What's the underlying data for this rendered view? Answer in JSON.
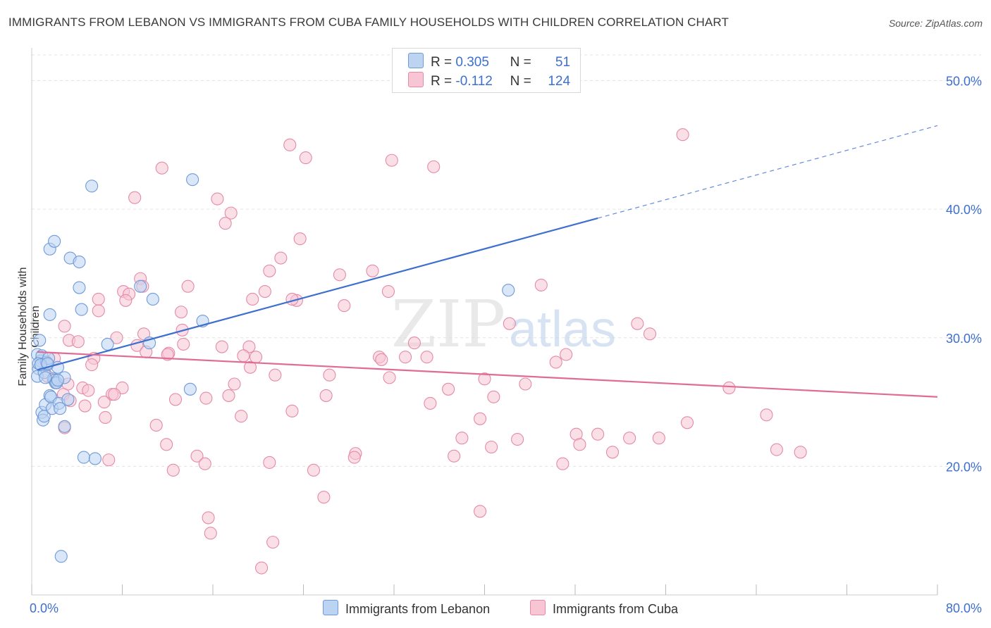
{
  "title": "IMMIGRANTS FROM LEBANON VS IMMIGRANTS FROM CUBA FAMILY HOUSEHOLDS WITH CHILDREN CORRELATION CHART",
  "source": "Source: ZipAtlas.com",
  "watermark": {
    "zip": "ZIP",
    "atlas": "atlas"
  },
  "legend": {
    "lebanon": {
      "r_label": "R =",
      "r_value": "0.305",
      "n_label": "N =",
      "n_value": "51"
    },
    "cuba": {
      "r_label": "R =",
      "r_value": "-0.112",
      "n_label": "N =",
      "n_value": "124"
    }
  },
  "colors": {
    "lebanon_fill": "#bcd3f2",
    "lebanon_stroke": "#6f9ad8",
    "lebanon_line": "#3d6fcf",
    "cuba_fill": "#f7c5d4",
    "cuba_stroke": "#e48aa8",
    "cuba_line": "#e06c95",
    "tick_text": "#3d6fcf",
    "grid": "#e3e3e3"
  },
  "chart_data": {
    "type": "scatter",
    "title": "IMMIGRANTS FROM LEBANON VS IMMIGRANTS FROM CUBA FAMILY HOUSEHOLDS WITH CHILDREN CORRELATION CHART",
    "xlabel": "",
    "ylabel": "Family Households with Children",
    "xlim": [
      0,
      80
    ],
    "ylim": [
      10.0,
      52.0
    ],
    "x_tick_labels": {
      "min": "0.0%",
      "max": "80.0%"
    },
    "y_ticks": [
      20,
      30,
      40,
      50
    ],
    "y_tick_labels": [
      "20.0%",
      "30.0%",
      "40.0%",
      "50.0%"
    ],
    "grid": true,
    "series": [
      {
        "name": "Immigrants from Lebanon",
        "r": 0.305,
        "n": 51,
        "trend": {
          "x0": 0.5,
          "y0": 27.5,
          "x1": 50.0,
          "y1": 39.3,
          "dash_x1": 80.0,
          "dash_y1": 46.5
        },
        "points": [
          [
            0.5,
            28.7
          ],
          [
            0.6,
            27.6
          ],
          [
            0.5,
            27.0
          ],
          [
            0.8,
            28.2
          ],
          [
            0.9,
            28.6
          ],
          [
            0.7,
            29.8
          ],
          [
            0.6,
            28.0
          ],
          [
            1.1,
            27.3
          ],
          [
            0.9,
            24.2
          ],
          [
            1.0,
            23.6
          ],
          [
            1.2,
            24.8
          ],
          [
            1.1,
            23.9
          ],
          [
            1.3,
            28.1
          ],
          [
            1.4,
            27.9
          ],
          [
            1.5,
            28.4
          ],
          [
            1.6,
            25.5
          ],
          [
            1.7,
            25.4
          ],
          [
            1.8,
            24.5
          ],
          [
            1.9,
            26.8
          ],
          [
            2.0,
            26.7
          ],
          [
            2.1,
            26.5
          ],
          [
            2.2,
            26.5
          ],
          [
            2.3,
            27.7
          ],
          [
            2.4,
            24.9
          ],
          [
            2.5,
            24.5
          ],
          [
            2.9,
            26.9
          ],
          [
            3.2,
            25.2
          ],
          [
            1.6,
            31.8
          ],
          [
            1.6,
            36.9
          ],
          [
            2.0,
            37.5
          ],
          [
            3.4,
            36.2
          ],
          [
            4.2,
            35.9
          ],
          [
            4.2,
            33.9
          ],
          [
            4.4,
            32.2
          ],
          [
            2.9,
            23.1
          ],
          [
            4.6,
            20.7
          ],
          [
            5.3,
            41.8
          ],
          [
            5.6,
            20.6
          ],
          [
            6.7,
            29.5
          ],
          [
            9.6,
            34.0
          ],
          [
            10.4,
            29.6
          ],
          [
            10.7,
            33.0
          ],
          [
            14.2,
            42.3
          ],
          [
            15.1,
            31.3
          ],
          [
            14.0,
            26.0
          ],
          [
            42.1,
            33.7
          ],
          [
            2.6,
            13.0
          ],
          [
            0.8,
            27.9
          ],
          [
            1.2,
            26.9
          ],
          [
            1.4,
            28.0
          ],
          [
            2.3,
            26.7
          ]
        ]
      },
      {
        "name": "Immigrants from Cuba",
        "r": -0.112,
        "n": 124,
        "trend": {
          "x0": 0.5,
          "y0": 28.9,
          "x1": 80.0,
          "y1": 25.4
        },
        "points": [
          [
            57.5,
            45.8
          ],
          [
            22.8,
            45.0
          ],
          [
            24.2,
            44.0
          ],
          [
            31.8,
            43.8
          ],
          [
            35.5,
            43.3
          ],
          [
            11.5,
            43.2
          ],
          [
            9.1,
            40.9
          ],
          [
            16.4,
            40.8
          ],
          [
            17.6,
            39.7
          ],
          [
            17.1,
            38.9
          ],
          [
            23.7,
            37.7
          ],
          [
            22.0,
            36.2
          ],
          [
            30.1,
            35.2
          ],
          [
            21.0,
            35.2
          ],
          [
            27.2,
            34.9
          ],
          [
            9.6,
            34.6
          ],
          [
            45.0,
            34.1
          ],
          [
            13.8,
            34.0
          ],
          [
            9.8,
            34.0
          ],
          [
            8.1,
            33.6
          ],
          [
            20.6,
            33.6
          ],
          [
            8.6,
            33.4
          ],
          [
            31.5,
            33.6
          ],
          [
            5.9,
            33.0
          ],
          [
            19.5,
            33.0
          ],
          [
            23.4,
            32.9
          ],
          [
            23.0,
            33.0
          ],
          [
            8.3,
            32.9
          ],
          [
            27.6,
            32.5
          ],
          [
            13.2,
            32.0
          ],
          [
            5.9,
            32.1
          ],
          [
            2.9,
            30.9
          ],
          [
            42.2,
            31.1
          ],
          [
            53.5,
            31.1
          ],
          [
            54.6,
            30.3
          ],
          [
            9.9,
            30.3
          ],
          [
            13.3,
            30.6
          ],
          [
            7.5,
            30.0
          ],
          [
            3.3,
            29.8
          ],
          [
            4.1,
            29.7
          ],
          [
            13.4,
            29.5
          ],
          [
            16.8,
            29.3
          ],
          [
            19.2,
            29.3
          ],
          [
            33.8,
            29.6
          ],
          [
            9.3,
            29.4
          ],
          [
            10.1,
            28.9
          ],
          [
            12.1,
            28.8
          ],
          [
            12.0,
            28.7
          ],
          [
            2.0,
            28.4
          ],
          [
            5.5,
            28.4
          ],
          [
            18.7,
            28.6
          ],
          [
            19.8,
            28.5
          ],
          [
            30.7,
            28.5
          ],
          [
            33.0,
            28.5
          ],
          [
            34.9,
            28.5
          ],
          [
            30.9,
            28.3
          ],
          [
            46.3,
            28.1
          ],
          [
            47.2,
            28.7
          ],
          [
            5.3,
            27.9
          ],
          [
            19.3,
            27.7
          ],
          [
            26.3,
            27.1
          ],
          [
            21.5,
            27.1
          ],
          [
            1.4,
            27.0
          ],
          [
            31.6,
            26.9
          ],
          [
            40.0,
            26.8
          ],
          [
            2.2,
            26.5
          ],
          [
            3.2,
            26.4
          ],
          [
            17.9,
            26.4
          ],
          [
            4.5,
            26.1
          ],
          [
            8.0,
            26.1
          ],
          [
            5.0,
            25.9
          ],
          [
            36.8,
            26.0
          ],
          [
            61.6,
            26.1
          ],
          [
            43.6,
            26.4
          ],
          [
            2.8,
            25.6
          ],
          [
            7.1,
            25.6
          ],
          [
            17.4,
            25.5
          ],
          [
            15.4,
            25.3
          ],
          [
            12.7,
            25.2
          ],
          [
            40.8,
            25.4
          ],
          [
            6.4,
            25.0
          ],
          [
            4.7,
            24.7
          ],
          [
            35.2,
            24.9
          ],
          [
            23.0,
            24.3
          ],
          [
            18.5,
            23.9
          ],
          [
            6.5,
            23.8
          ],
          [
            64.9,
            24.0
          ],
          [
            39.6,
            23.7
          ],
          [
            57.9,
            23.4
          ],
          [
            11.0,
            23.2
          ],
          [
            2.9,
            23.0
          ],
          [
            48.1,
            22.5
          ],
          [
            50.0,
            22.5
          ],
          [
            52.8,
            22.2
          ],
          [
            55.4,
            22.2
          ],
          [
            38.0,
            22.2
          ],
          [
            42.9,
            22.1
          ],
          [
            11.9,
            21.7
          ],
          [
            48.4,
            21.7
          ],
          [
            40.6,
            21.5
          ],
          [
            65.8,
            21.3
          ],
          [
            67.9,
            21.1
          ],
          [
            51.3,
            21.1
          ],
          [
            28.6,
            21.0
          ],
          [
            28.5,
            20.7
          ],
          [
            14.6,
            20.8
          ],
          [
            37.3,
            20.8
          ],
          [
            15.3,
            20.2
          ],
          [
            21.0,
            20.3
          ],
          [
            46.9,
            20.2
          ],
          [
            12.5,
            19.7
          ],
          [
            24.9,
            19.7
          ],
          [
            25.8,
            17.6
          ],
          [
            39.6,
            16.5
          ],
          [
            15.6,
            16.0
          ],
          [
            15.8,
            14.8
          ],
          [
            21.3,
            14.1
          ],
          [
            20.3,
            12.1
          ],
          [
            6.8,
            20.5
          ],
          [
            7.3,
            25.6
          ],
          [
            26.0,
            25.5
          ],
          [
            3.4,
            25.1
          ]
        ]
      }
    ]
  }
}
